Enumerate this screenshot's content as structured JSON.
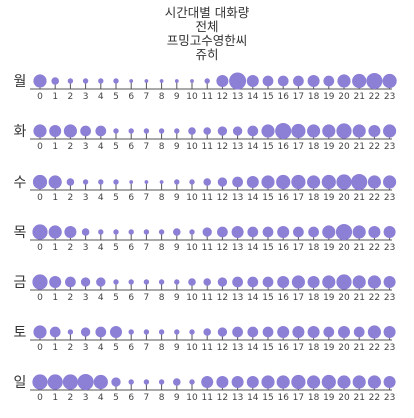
{
  "title_lines": [
    "시간대별 대화량",
    "전체",
    "프밍고수영한씨",
    "쥬히"
  ],
  "colors": {
    "dot": "#8b7fd6",
    "axis": "#555555"
  },
  "chart_data": {
    "type": "scatter",
    "title": "시간대별 대화량 / 전체 / 프밍고수영한씨 / 쥬히",
    "x": [
      0,
      1,
      2,
      3,
      4,
      5,
      6,
      7,
      8,
      9,
      10,
      11,
      12,
      13,
      14,
      15,
      16,
      17,
      18,
      19,
      20,
      21,
      22,
      23
    ],
    "tick_labels": [
      "0",
      "1",
      "2",
      "3",
      "4",
      "5",
      "6",
      "7",
      "8",
      "9",
      "10",
      "11",
      "12",
      "13",
      "14",
      "15",
      "16",
      "17",
      "18",
      "19",
      "20",
      "21",
      "22",
      "23"
    ],
    "days": [
      "월",
      "화",
      "수",
      "목",
      "금",
      "토",
      "일"
    ],
    "series": [
      {
        "name": "월",
        "values": [
          6,
          2,
          1,
          1,
          1,
          1,
          0.5,
          0.5,
          0.5,
          0.5,
          0.5,
          1,
          5,
          10,
          5,
          4,
          4,
          4,
          5,
          4,
          6,
          7,
          9,
          7
        ]
      },
      {
        "name": "화",
        "values": [
          6,
          5,
          6,
          4,
          4,
          1,
          1,
          1,
          1,
          1,
          2,
          2,
          3,
          3,
          4,
          6,
          9,
          7,
          6,
          6,
          8,
          6,
          5,
          6
        ]
      },
      {
        "name": "수",
        "values": [
          7,
          6,
          2,
          1,
          1,
          1,
          0.5,
          0.5,
          0.5,
          1,
          1,
          2,
          3,
          4,
          5,
          6,
          7,
          7,
          6,
          7,
          8,
          9,
          6,
          6
        ]
      },
      {
        "name": "목",
        "values": [
          8,
          6,
          5,
          2,
          1,
          1,
          1,
          1,
          1,
          2,
          1,
          3,
          4,
          5,
          4,
          4,
          5,
          4,
          4,
          6,
          9,
          6,
          5,
          5
        ]
      },
      {
        "name": "금",
        "values": [
          8,
          5,
          4,
          3,
          3,
          1,
          1,
          1,
          1,
          1,
          2,
          2,
          3,
          4,
          4,
          4,
          5,
          6,
          5,
          6,
          8,
          6,
          6,
          5
        ]
      },
      {
        "name": "토",
        "values": [
          6,
          4,
          1,
          3,
          4,
          5,
          1,
          1,
          1,
          1,
          1,
          2,
          3,
          4,
          4,
          4,
          5,
          5,
          5,
          4,
          5,
          4,
          6,
          5
        ]
      },
      {
        "name": "일",
        "values": [
          8,
          8,
          8,
          9,
          7,
          3,
          1,
          1,
          1,
          2,
          1,
          5,
          5,
          5,
          5,
          6,
          6,
          7,
          6,
          7,
          6,
          6,
          6,
          5
        ]
      }
    ],
    "xlabel": "",
    "ylabel": "",
    "grid": false,
    "legend": "none"
  }
}
